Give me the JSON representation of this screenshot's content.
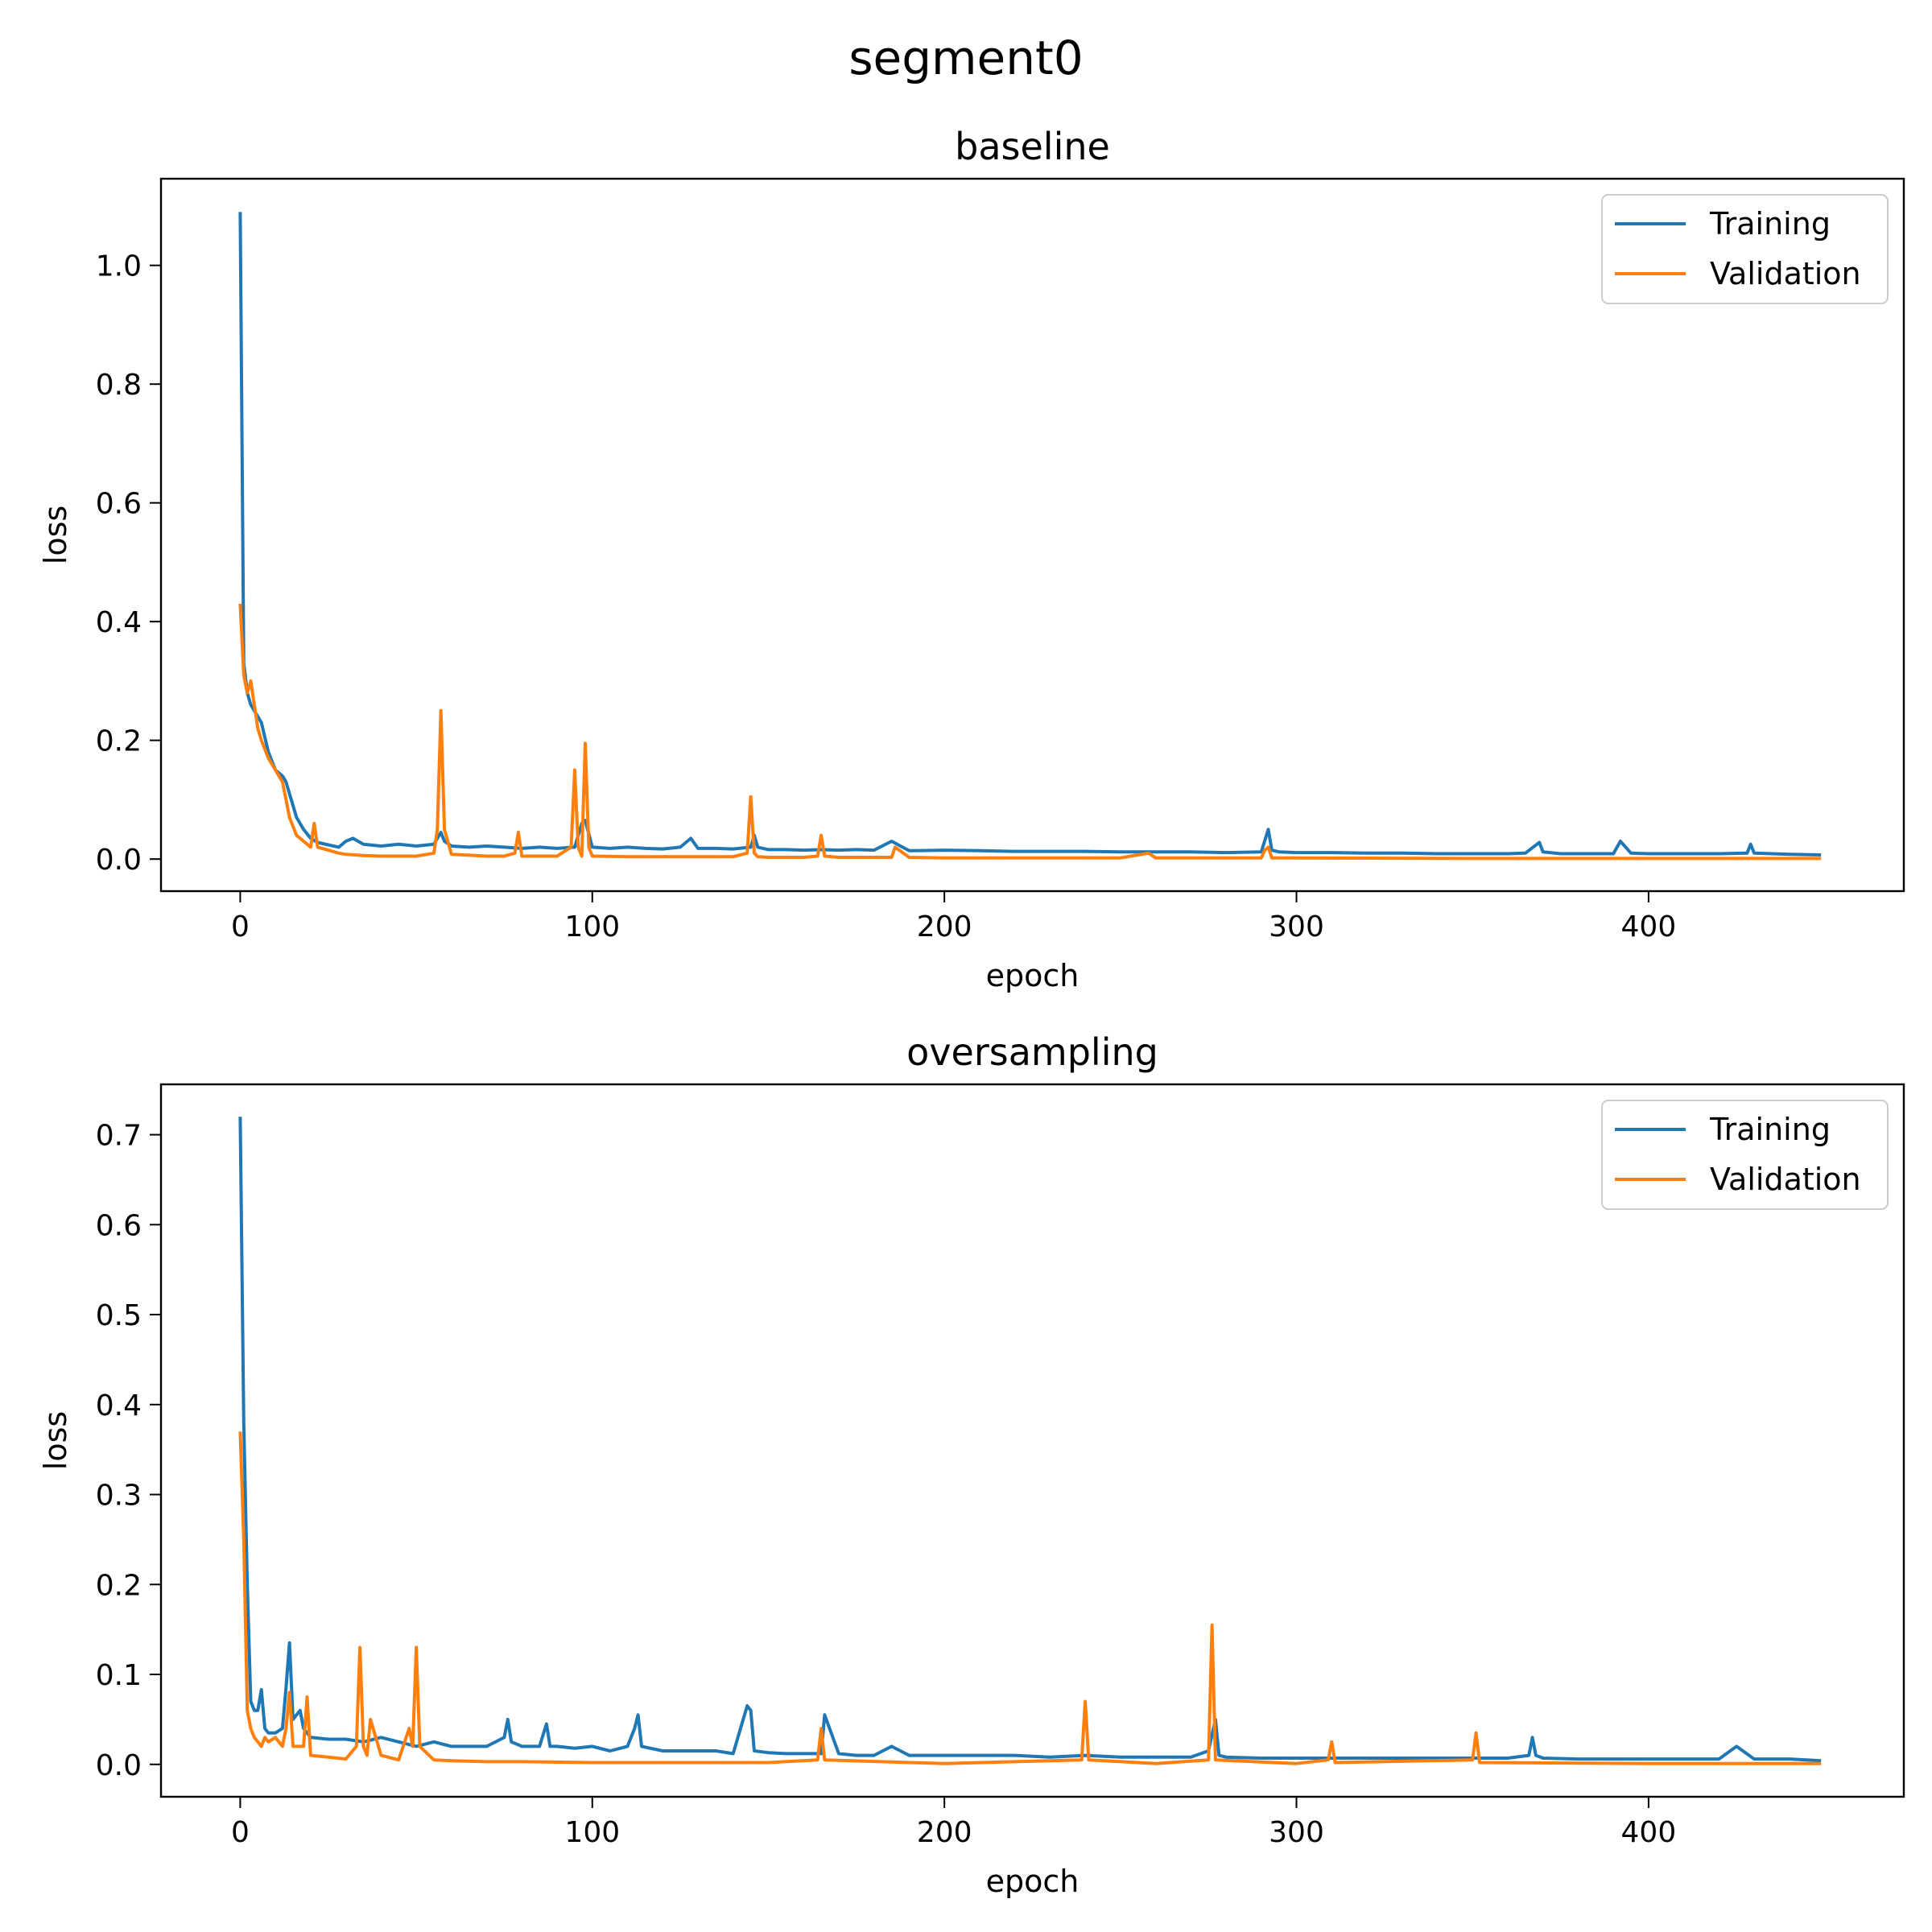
{
  "figure": {
    "title": "segment0"
  },
  "colors": {
    "training": "#1f77b4",
    "validation": "#ff7f0e"
  },
  "chart_data": [
    {
      "type": "line",
      "title": "baseline",
      "xlabel": "epoch",
      "ylabel": "loss",
      "xlim": [
        -22.5,
        472.5
      ],
      "ylim": [
        -0.054,
        1.146
      ],
      "xticks": [
        0,
        100,
        200,
        300,
        400
      ],
      "yticks": [
        0.0,
        0.2,
        0.4,
        0.6,
        0.8,
        1.0
      ],
      "ytick_labels": [
        "0.0",
        "0.2",
        "0.4",
        "0.6",
        "0.8",
        "1.0"
      ],
      "grid": false,
      "legend": "top-right",
      "series": [
        {
          "name": "Training",
          "color": "#1f77b4",
          "x": [
            0,
            1,
            2,
            3,
            4,
            5,
            6,
            8,
            10,
            12,
            13,
            14,
            16,
            18,
            20,
            22,
            25,
            28,
            30,
            32,
            35,
            40,
            45,
            50,
            55,
            57,
            58,
            60,
            65,
            70,
            75,
            80,
            85,
            90,
            95,
            97,
            98,
            100,
            105,
            110,
            115,
            120,
            125,
            128,
            130,
            135,
            140,
            145,
            146,
            147,
            150,
            155,
            160,
            165,
            170,
            175,
            180,
            185,
            190,
            200,
            210,
            220,
            230,
            240,
            250,
            260,
            270,
            280,
            290,
            292,
            293,
            295,
            300,
            310,
            320,
            330,
            340,
            350,
            360,
            365,
            369,
            370,
            375,
            380,
            390,
            392,
            395,
            400,
            410,
            420,
            428,
            429,
            430,
            440,
            449
          ],
          "values": [
            1.09,
            0.33,
            0.28,
            0.26,
            0.25,
            0.24,
            0.23,
            0.18,
            0.15,
            0.14,
            0.13,
            0.11,
            0.07,
            0.05,
            0.035,
            0.028,
            0.024,
            0.02,
            0.03,
            0.035,
            0.025,
            0.022,
            0.025,
            0.022,
            0.025,
            0.045,
            0.03,
            0.022,
            0.02,
            0.022,
            0.02,
            0.018,
            0.02,
            0.018,
            0.02,
            0.06,
            0.065,
            0.02,
            0.018,
            0.02,
            0.018,
            0.017,
            0.02,
            0.035,
            0.018,
            0.018,
            0.017,
            0.02,
            0.04,
            0.02,
            0.016,
            0.016,
            0.015,
            0.016,
            0.015,
            0.016,
            0.015,
            0.03,
            0.014,
            0.015,
            0.014,
            0.013,
            0.013,
            0.013,
            0.012,
            0.012,
            0.012,
            0.011,
            0.012,
            0.05,
            0.015,
            0.012,
            0.011,
            0.011,
            0.01,
            0.01,
            0.009,
            0.009,
            0.009,
            0.01,
            0.028,
            0.012,
            0.009,
            0.009,
            0.009,
            0.03,
            0.01,
            0.009,
            0.009,
            0.009,
            0.01,
            0.025,
            0.01,
            0.008,
            0.007
          ]
        },
        {
          "name": "Validation",
          "color": "#ff7f0e",
          "x": [
            0,
            1,
            2,
            3,
            4,
            5,
            6,
            8,
            10,
            12,
            13,
            14,
            16,
            18,
            20,
            21,
            22,
            25,
            28,
            30,
            35,
            40,
            45,
            50,
            55,
            56,
            57,
            58,
            60,
            70,
            75,
            78,
            79,
            80,
            85,
            90,
            94,
            95,
            96,
            97,
            98,
            99,
            100,
            110,
            120,
            130,
            140,
            144,
            145,
            146,
            147,
            150,
            155,
            160,
            164,
            165,
            166,
            170,
            180,
            185,
            186,
            190,
            200,
            220,
            250,
            258,
            260,
            280,
            290,
            291,
            292,
            293,
            300,
            350,
            400,
            449
          ],
          "values": [
            0.43,
            0.31,
            0.28,
            0.3,
            0.26,
            0.22,
            0.2,
            0.17,
            0.15,
            0.13,
            0.1,
            0.07,
            0.04,
            0.03,
            0.02,
            0.06,
            0.02,
            0.015,
            0.01,
            0.008,
            0.006,
            0.005,
            0.005,
            0.005,
            0.01,
            0.05,
            0.25,
            0.05,
            0.008,
            0.005,
            0.005,
            0.01,
            0.045,
            0.005,
            0.005,
            0.005,
            0.02,
            0.15,
            0.02,
            0.005,
            0.195,
            0.02,
            0.005,
            0.004,
            0.004,
            0.004,
            0.004,
            0.01,
            0.105,
            0.01,
            0.004,
            0.003,
            0.003,
            0.003,
            0.005,
            0.04,
            0.005,
            0.003,
            0.003,
            0.003,
            0.02,
            0.003,
            0.002,
            0.002,
            0.002,
            0.01,
            0.002,
            0.002,
            0.002,
            0.015,
            0.02,
            0.002,
            0.002,
            0.001,
            0.001,
            0.001
          ]
        }
      ]
    },
    {
      "type": "line",
      "title": "oversampling",
      "xlabel": "epoch",
      "ylabel": "loss",
      "xlim": [
        -22.5,
        472.5
      ],
      "ylim": [
        -0.036,
        0.756
      ],
      "xticks": [
        0,
        100,
        200,
        300,
        400
      ],
      "yticks": [
        0.0,
        0.1,
        0.2,
        0.3,
        0.4,
        0.5,
        0.6,
        0.7
      ],
      "ytick_labels": [
        "0.0",
        "0.1",
        "0.2",
        "0.3",
        "0.4",
        "0.5",
        "0.6",
        "0.7"
      ],
      "grid": false,
      "legend": "top-right",
      "series": [
        {
          "name": "Training",
          "color": "#1f77b4",
          "x": [
            0,
            1,
            2,
            3,
            4,
            5,
            6,
            7,
            8,
            10,
            12,
            13,
            14,
            15,
            17,
            18,
            20,
            25,
            30,
            35,
            40,
            45,
            50,
            55,
            60,
            65,
            70,
            75,
            76,
            77,
            80,
            85,
            87,
            88,
            90,
            95,
            100,
            105,
            110,
            112,
            113,
            114,
            120,
            125,
            130,
            135,
            140,
            144,
            145,
            146,
            150,
            155,
            160,
            165,
            166,
            170,
            175,
            180,
            185,
            190,
            200,
            210,
            220,
            230,
            240,
            250,
            260,
            270,
            275,
            277,
            278,
            280,
            290,
            300,
            310,
            320,
            330,
            340,
            350,
            360,
            366,
            367,
            368,
            370,
            380,
            390,
            400,
            410,
            420,
            425,
            430,
            440,
            449
          ],
          "values": [
            0.72,
            0.38,
            0.2,
            0.07,
            0.06,
            0.06,
            0.083,
            0.04,
            0.035,
            0.035,
            0.04,
            0.085,
            0.135,
            0.05,
            0.06,
            0.04,
            0.03,
            0.028,
            0.028,
            0.025,
            0.03,
            0.025,
            0.02,
            0.025,
            0.02,
            0.02,
            0.02,
            0.03,
            0.05,
            0.025,
            0.02,
            0.02,
            0.045,
            0.02,
            0.02,
            0.018,
            0.02,
            0.015,
            0.02,
            0.04,
            0.055,
            0.02,
            0.015,
            0.015,
            0.015,
            0.015,
            0.012,
            0.065,
            0.06,
            0.015,
            0.013,
            0.012,
            0.012,
            0.012,
            0.055,
            0.012,
            0.01,
            0.01,
            0.02,
            0.01,
            0.01,
            0.01,
            0.01,
            0.008,
            0.01,
            0.008,
            0.008,
            0.008,
            0.015,
            0.05,
            0.01,
            0.008,
            0.007,
            0.007,
            0.007,
            0.007,
            0.007,
            0.007,
            0.007,
            0.007,
            0.01,
            0.03,
            0.01,
            0.007,
            0.006,
            0.006,
            0.006,
            0.006,
            0.006,
            0.02,
            0.006,
            0.006,
            0.004
          ]
        },
        {
          "name": "Validation",
          "color": "#ff7f0e",
          "x": [
            0,
            1,
            2,
            3,
            4,
            5,
            6,
            7,
            8,
            10,
            12,
            13,
            14,
            15,
            18,
            19,
            20,
            25,
            30,
            33,
            34,
            35,
            36,
            37,
            40,
            45,
            48,
            49,
            50,
            51,
            55,
            60,
            70,
            80,
            100,
            150,
            164,
            165,
            166,
            200,
            239,
            240,
            241,
            260,
            275,
            276,
            277,
            300,
            309,
            310,
            311,
            350,
            351,
            352,
            400,
            449
          ],
          "values": [
            0.37,
            0.25,
            0.06,
            0.04,
            0.03,
            0.025,
            0.02,
            0.03,
            0.025,
            0.03,
            0.02,
            0.04,
            0.08,
            0.02,
            0.02,
            0.075,
            0.01,
            0.008,
            0.006,
            0.02,
            0.13,
            0.02,
            0.01,
            0.05,
            0.01,
            0.005,
            0.04,
            0.02,
            0.13,
            0.02,
            0.005,
            0.004,
            0.003,
            0.003,
            0.002,
            0.002,
            0.005,
            0.04,
            0.005,
            0.001,
            0.005,
            0.07,
            0.005,
            0.001,
            0.005,
            0.155,
            0.005,
            0.001,
            0.005,
            0.025,
            0.002,
            0.005,
            0.035,
            0.002,
            0.001,
            0.001
          ]
        }
      ]
    }
  ]
}
